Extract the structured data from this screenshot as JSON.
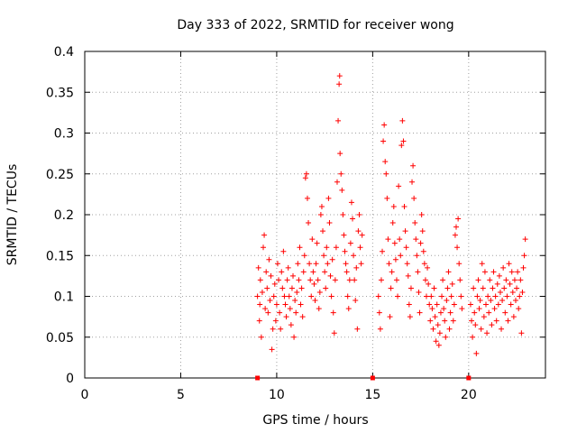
{
  "chart_data": {
    "type": "scatter",
    "title": "Day 333 of 2022, SRMTID for receiver wong",
    "xlabel": "GPS time / hours",
    "ylabel": "SRMTID / TECUs",
    "xlim": [
      0,
      24
    ],
    "ylim": [
      0,
      0.4
    ],
    "grid": true,
    "xticks": [
      0,
      5,
      10,
      15,
      20
    ],
    "xtick_labels": [
      "0",
      "5",
      "10",
      "15",
      "20"
    ],
    "yticks": [
      0,
      0.05,
      0.1,
      0.15,
      0.2,
      0.25,
      0.3,
      0.35,
      0.4
    ],
    "ytick_labels": [
      "0",
      "0.05",
      "0.1",
      "0.15",
      "0.2",
      "0.25",
      "0.3",
      "0.35",
      "0.4"
    ],
    "marker": "plus",
    "series": [
      {
        "name": "SRMTID",
        "color": "#ff0000",
        "points": [
          [
            9.0,
            0.1
          ],
          [
            9.05,
            0.135
          ],
          [
            9.1,
            0.07
          ],
          [
            9.12,
            0.09
          ],
          [
            9.15,
            0.12
          ],
          [
            9.2,
            0.05
          ],
          [
            9.25,
            0.105
          ],
          [
            9.3,
            0.16
          ],
          [
            9.35,
            0.175
          ],
          [
            9.4,
            0.085
          ],
          [
            9.45,
            0.13
          ],
          [
            9.5,
            0.11
          ],
          [
            9.55,
            0.08
          ],
          [
            9.6,
            0.145
          ],
          [
            9.65,
            0.095
          ],
          [
            9.7,
            0.125
          ],
          [
            9.75,
            0.035
          ],
          [
            9.8,
            0.06
          ],
          [
            9.85,
            0.1
          ],
          [
            9.9,
            0.115
          ],
          [
            9.95,
            0.07
          ],
          [
            10.0,
            0.09
          ],
          [
            10.05,
            0.14
          ],
          [
            10.1,
            0.12
          ],
          [
            10.15,
            0.08
          ],
          [
            10.2,
            0.06
          ],
          [
            10.25,
            0.13
          ],
          [
            10.3,
            0.11
          ],
          [
            10.35,
            0.155
          ],
          [
            10.4,
            0.1
          ],
          [
            10.45,
            0.09
          ],
          [
            10.5,
            0.075
          ],
          [
            10.55,
            0.12
          ],
          [
            10.6,
            0.135
          ],
          [
            10.65,
            0.1
          ],
          [
            10.7,
            0.085
          ],
          [
            10.75,
            0.065
          ],
          [
            10.8,
            0.11
          ],
          [
            10.85,
            0.125
          ],
          [
            10.9,
            0.05
          ],
          [
            10.95,
            0.095
          ],
          [
            11.0,
            0.08
          ],
          [
            11.05,
            0.105
          ],
          [
            11.1,
            0.14
          ],
          [
            11.15,
            0.12
          ],
          [
            11.2,
            0.16
          ],
          [
            11.25,
            0.09
          ],
          [
            11.3,
            0.11
          ],
          [
            11.35,
            0.075
          ],
          [
            11.4,
            0.13
          ],
          [
            11.45,
            0.15
          ],
          [
            11.5,
            0.245
          ],
          [
            11.55,
            0.25
          ],
          [
            11.6,
            0.22
          ],
          [
            11.65,
            0.19
          ],
          [
            11.7,
            0.14
          ],
          [
            11.75,
            0.12
          ],
          [
            11.8,
            0.1
          ],
          [
            11.85,
            0.17
          ],
          [
            11.9,
            0.13
          ],
          [
            11.95,
            0.115
          ],
          [
            12.0,
            0.095
          ],
          [
            12.05,
            0.14
          ],
          [
            12.1,
            0.165
          ],
          [
            12.15,
            0.12
          ],
          [
            12.2,
            0.085
          ],
          [
            12.25,
            0.105
          ],
          [
            12.3,
            0.2
          ],
          [
            12.35,
            0.21
          ],
          [
            12.4,
            0.18
          ],
          [
            12.45,
            0.15
          ],
          [
            12.5,
            0.13
          ],
          [
            12.55,
            0.11
          ],
          [
            12.6,
            0.16
          ],
          [
            12.65,
            0.14
          ],
          [
            12.7,
            0.22
          ],
          [
            12.75,
            0.19
          ],
          [
            12.8,
            0.125
          ],
          [
            12.85,
            0.1
          ],
          [
            12.9,
            0.145
          ],
          [
            12.95,
            0.08
          ],
          [
            13.0,
            0.055
          ],
          [
            13.05,
            0.12
          ],
          [
            13.1,
            0.16
          ],
          [
            13.15,
            0.24
          ],
          [
            13.2,
            0.315
          ],
          [
            13.25,
            0.36
          ],
          [
            13.28,
            0.37
          ],
          [
            13.3,
            0.275
          ],
          [
            13.35,
            0.25
          ],
          [
            13.4,
            0.23
          ],
          [
            13.45,
            0.2
          ],
          [
            13.5,
            0.175
          ],
          [
            13.55,
            0.155
          ],
          [
            13.6,
            0.14
          ],
          [
            13.65,
            0.13
          ],
          [
            13.7,
            0.1
          ],
          [
            13.75,
            0.085
          ],
          [
            13.8,
            0.12
          ],
          [
            13.85,
            0.165
          ],
          [
            13.9,
            0.215
          ],
          [
            13.95,
            0.195
          ],
          [
            14.0,
            0.15
          ],
          [
            14.05,
            0.12
          ],
          [
            14.1,
            0.095
          ],
          [
            14.15,
            0.135
          ],
          [
            14.2,
            0.06
          ],
          [
            14.25,
            0.18
          ],
          [
            14.3,
            0.2
          ],
          [
            14.35,
            0.16
          ],
          [
            14.4,
            0.14
          ],
          [
            14.45,
            0.175
          ],
          [
            15.3,
            0.1
          ],
          [
            15.35,
            0.08
          ],
          [
            15.4,
            0.06
          ],
          [
            15.45,
            0.12
          ],
          [
            15.5,
            0.155
          ],
          [
            15.55,
            0.29
          ],
          [
            15.6,
            0.31
          ],
          [
            15.65,
            0.265
          ],
          [
            15.7,
            0.25
          ],
          [
            15.75,
            0.22
          ],
          [
            15.8,
            0.17
          ],
          [
            15.85,
            0.14
          ],
          [
            15.9,
            0.075
          ],
          [
            15.95,
            0.11
          ],
          [
            16.0,
            0.13
          ],
          [
            16.05,
            0.19
          ],
          [
            16.1,
            0.21
          ],
          [
            16.15,
            0.165
          ],
          [
            16.2,
            0.145
          ],
          [
            16.25,
            0.12
          ],
          [
            16.3,
            0.1
          ],
          [
            16.35,
            0.235
          ],
          [
            16.4,
            0.17
          ],
          [
            16.45,
            0.15
          ],
          [
            16.5,
            0.285
          ],
          [
            16.55,
            0.315
          ],
          [
            16.6,
            0.29
          ],
          [
            16.65,
            0.21
          ],
          [
            16.7,
            0.18
          ],
          [
            16.75,
            0.16
          ],
          [
            16.8,
            0.14
          ],
          [
            16.85,
            0.125
          ],
          [
            16.9,
            0.09
          ],
          [
            16.95,
            0.075
          ],
          [
            17.0,
            0.11
          ],
          [
            17.05,
            0.24
          ],
          [
            17.1,
            0.26
          ],
          [
            17.15,
            0.22
          ],
          [
            17.2,
            0.19
          ],
          [
            17.25,
            0.17
          ],
          [
            17.3,
            0.15
          ],
          [
            17.35,
            0.13
          ],
          [
            17.4,
            0.105
          ],
          [
            17.45,
            0.08
          ],
          [
            17.5,
            0.165
          ],
          [
            17.55,
            0.2
          ],
          [
            17.6,
            0.18
          ],
          [
            17.65,
            0.155
          ],
          [
            17.7,
            0.14
          ],
          [
            17.75,
            0.12
          ],
          [
            17.8,
            0.1
          ],
          [
            17.85,
            0.135
          ],
          [
            17.9,
            0.115
          ],
          [
            17.95,
            0.09
          ],
          [
            18.0,
            0.07
          ],
          [
            18.05,
            0.1
          ],
          [
            18.1,
            0.085
          ],
          [
            18.15,
            0.06
          ],
          [
            18.2,
            0.11
          ],
          [
            18.25,
            0.075
          ],
          [
            18.3,
            0.045
          ],
          [
            18.35,
            0.09
          ],
          [
            18.4,
            0.065
          ],
          [
            18.45,
            0.04
          ],
          [
            18.5,
            0.055
          ],
          [
            18.55,
            0.08
          ],
          [
            18.6,
            0.1
          ],
          [
            18.65,
            0.12
          ],
          [
            18.7,
            0.085
          ],
          [
            18.75,
            0.07
          ],
          [
            18.8,
            0.05
          ],
          [
            18.85,
            0.095
          ],
          [
            18.9,
            0.11
          ],
          [
            18.95,
            0.13
          ],
          [
            19.0,
            0.06
          ],
          [
            19.05,
            0.08
          ],
          [
            19.1,
            0.1
          ],
          [
            19.15,
            0.115
          ],
          [
            19.2,
            0.07
          ],
          [
            19.25,
            0.09
          ],
          [
            19.3,
            0.175
          ],
          [
            19.35,
            0.185
          ],
          [
            19.4,
            0.16
          ],
          [
            19.45,
            0.195
          ],
          [
            19.5,
            0.14
          ],
          [
            19.55,
            0.12
          ],
          [
            19.6,
            0.1
          ],
          [
            19.65,
            0.085
          ],
          [
            20.1,
            0.09
          ],
          [
            20.15,
            0.07
          ],
          [
            20.2,
            0.05
          ],
          [
            20.25,
            0.11
          ],
          [
            20.3,
            0.08
          ],
          [
            20.35,
            0.065
          ],
          [
            20.4,
            0.03
          ],
          [
            20.45,
            0.1
          ],
          [
            20.5,
            0.12
          ],
          [
            20.55,
            0.085
          ],
          [
            20.6,
            0.095
          ],
          [
            20.65,
            0.06
          ],
          [
            20.7,
            0.14
          ],
          [
            20.75,
            0.11
          ],
          [
            20.8,
            0.075
          ],
          [
            20.85,
            0.13
          ],
          [
            20.9,
            0.09
          ],
          [
            20.95,
            0.055
          ],
          [
            21.0,
            0.1
          ],
          [
            21.05,
            0.08
          ],
          [
            21.1,
            0.12
          ],
          [
            21.15,
            0.095
          ],
          [
            21.2,
            0.065
          ],
          [
            21.25,
            0.11
          ],
          [
            21.3,
            0.13
          ],
          [
            21.35,
            0.085
          ],
          [
            21.4,
            0.1
          ],
          [
            21.45,
            0.07
          ],
          [
            21.5,
            0.115
          ],
          [
            21.55,
            0.09
          ],
          [
            21.6,
            0.125
          ],
          [
            21.65,
            0.105
          ],
          [
            21.7,
            0.06
          ],
          [
            21.75,
            0.095
          ],
          [
            21.8,
            0.135
          ],
          [
            21.85,
            0.11
          ],
          [
            21.9,
            0.08
          ],
          [
            21.95,
            0.12
          ],
          [
            22.0,
            0.1
          ],
          [
            22.05,
            0.07
          ],
          [
            22.1,
            0.14
          ],
          [
            22.15,
            0.115
          ],
          [
            22.2,
            0.09
          ],
          [
            22.25,
            0.13
          ],
          [
            22.3,
            0.105
          ],
          [
            22.35,
            0.075
          ],
          [
            22.4,
            0.12
          ],
          [
            22.45,
            0.095
          ],
          [
            22.5,
            0.11
          ],
          [
            22.55,
            0.13
          ],
          [
            22.6,
            0.085
          ],
          [
            22.65,
            0.1
          ],
          [
            22.7,
            0.12
          ],
          [
            22.75,
            0.055
          ],
          [
            22.8,
            0.105
          ],
          [
            22.85,
            0.135
          ],
          [
            22.9,
            0.15
          ],
          [
            22.95,
            0.17
          ]
        ]
      }
    ],
    "axis_markers": [
      9.0,
      15.0,
      20.0
    ]
  }
}
